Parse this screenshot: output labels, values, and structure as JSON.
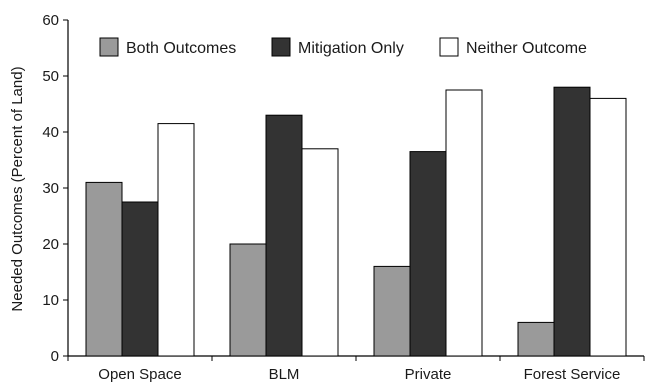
{
  "chart_data": {
    "type": "bar",
    "title": "",
    "xlabel": "",
    "ylabel": "Needed Outcomes (Percent of Land)",
    "ylim": [
      0,
      60
    ],
    "yticks": [
      "0",
      "10",
      "20",
      "30",
      "40",
      "50",
      "60"
    ],
    "categories": [
      "Open Space",
      "BLM",
      "Private",
      "Forest Service"
    ],
    "series": [
      {
        "name": "Both Outcomes",
        "color": "#9a9a9a",
        "values": [
          31,
          20,
          16,
          6
        ]
      },
      {
        "name": "Mitigation Only",
        "color": "#333333",
        "values": [
          27.5,
          43,
          36.5,
          48
        ]
      },
      {
        "name": "Neither Outcome",
        "color": "#ffffff",
        "values": [
          41.5,
          37,
          47.5,
          46
        ]
      }
    ],
    "grid": false,
    "legend_position": "top"
  }
}
